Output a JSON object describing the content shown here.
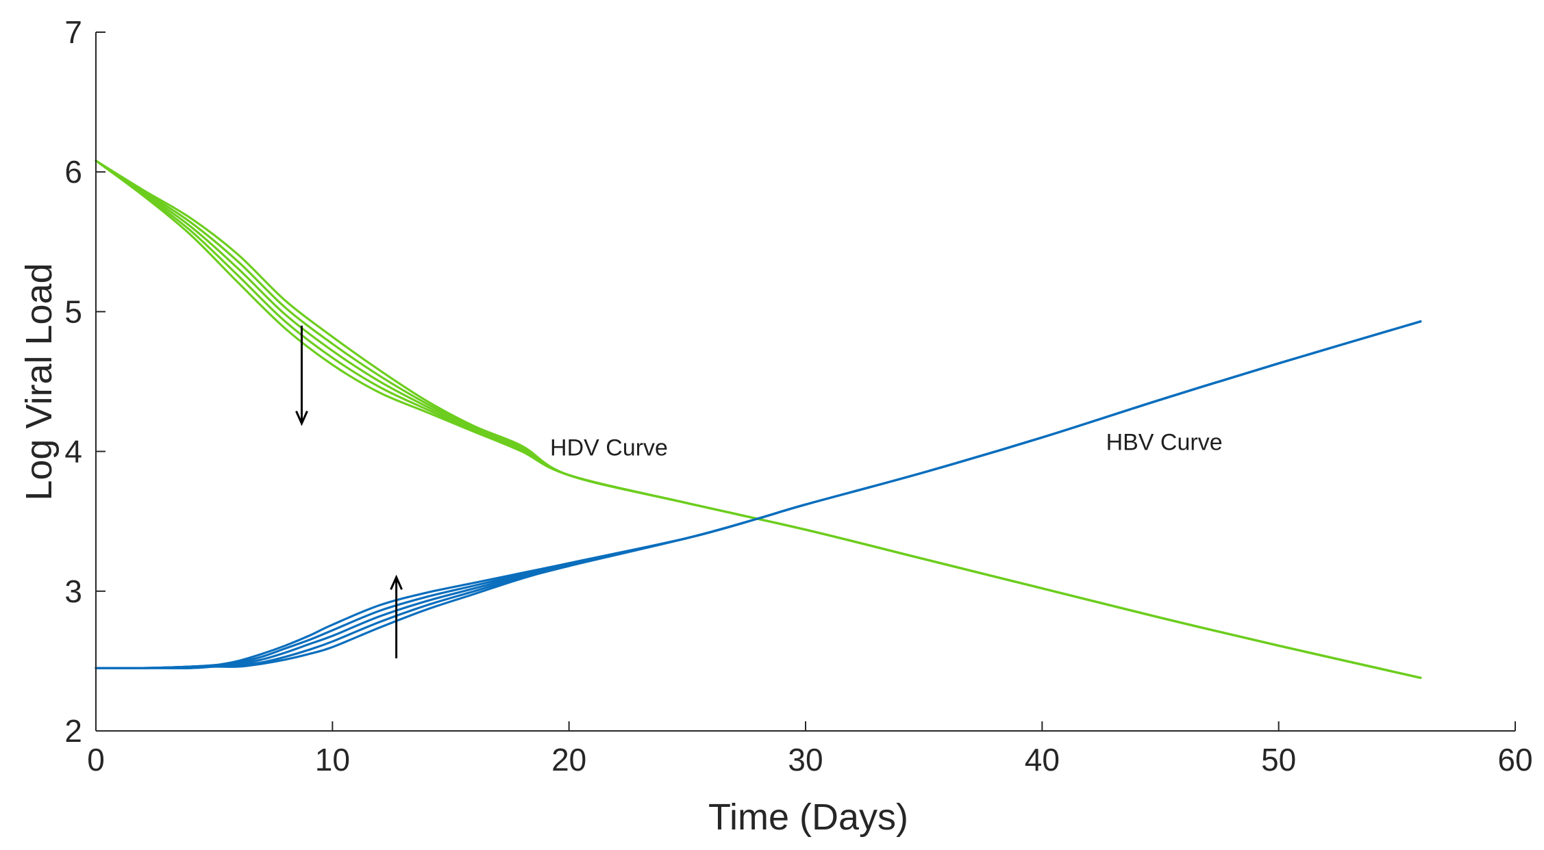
{
  "chart_data": {
    "type": "line",
    "title": "",
    "xlabel": "Time (Days)",
    "ylabel": "Log Viral Load",
    "xlim": [
      0,
      60
    ],
    "ylim": [
      2,
      7
    ],
    "xticks": [
      0,
      10,
      20,
      30,
      40,
      50,
      60
    ],
    "yticks": [
      2,
      3,
      4,
      5,
      6,
      7
    ],
    "grid": false,
    "colors": {
      "hdv": "#6ccd1e",
      "hbv": "#0a6ebd",
      "axis": "#262626",
      "arrow": "#000000"
    },
    "series": [
      {
        "name": "HDV",
        "family": "hdv",
        "x": [
          0,
          2,
          4,
          6,
          8,
          10,
          12,
          14,
          16,
          18,
          20,
          25,
          30,
          35,
          40,
          45,
          50,
          56
        ],
        "values": [
          6.08,
          5.83,
          5.55,
          5.21,
          4.88,
          4.62,
          4.42,
          4.28,
          4.14,
          4.0,
          3.83,
          3.63,
          3.44,
          3.23,
          3.02,
          2.81,
          2.61,
          2.38
        ]
      },
      {
        "name": "HDV",
        "family": "hdv",
        "x": [
          0,
          2,
          4,
          6,
          8,
          10,
          12,
          14,
          16,
          18,
          20,
          25,
          30,
          35,
          40,
          45,
          50,
          56
        ],
        "values": [
          6.08,
          5.84,
          5.58,
          5.26,
          4.93,
          4.67,
          4.46,
          4.3,
          4.15,
          4.01,
          3.83,
          3.63,
          3.44,
          3.23,
          3.02,
          2.81,
          2.61,
          2.38
        ]
      },
      {
        "name": "HDV",
        "family": "hdv",
        "x": [
          0,
          2,
          4,
          6,
          8,
          10,
          12,
          14,
          16,
          18,
          20,
          25,
          30,
          35,
          40,
          45,
          50,
          56
        ],
        "values": [
          6.08,
          5.85,
          5.61,
          5.31,
          4.98,
          4.72,
          4.5,
          4.32,
          4.16,
          4.02,
          3.83,
          3.63,
          3.44,
          3.23,
          3.02,
          2.81,
          2.61,
          2.38
        ]
      },
      {
        "name": "HDV",
        "family": "hdv",
        "x": [
          0,
          2,
          4,
          6,
          8,
          10,
          12,
          14,
          16,
          18,
          20,
          25,
          30,
          35,
          40,
          45,
          50,
          56
        ],
        "values": [
          6.08,
          5.86,
          5.64,
          5.36,
          5.03,
          4.77,
          4.54,
          4.34,
          4.17,
          4.03,
          3.83,
          3.63,
          3.44,
          3.23,
          3.02,
          2.81,
          2.61,
          2.38
        ]
      },
      {
        "name": "HDV",
        "family": "hdv",
        "x": [
          0,
          2,
          4,
          6,
          8,
          10,
          12,
          14,
          16,
          18,
          20,
          25,
          30,
          35,
          40,
          45,
          50,
          56
        ],
        "values": [
          6.08,
          5.87,
          5.67,
          5.41,
          5.08,
          4.82,
          4.58,
          4.36,
          4.18,
          4.04,
          3.83,
          3.63,
          3.44,
          3.23,
          3.02,
          2.81,
          2.61,
          2.38
        ]
      },
      {
        "name": "HBV",
        "family": "hbv",
        "x": [
          0,
          2,
          4,
          5,
          6,
          7,
          8,
          9,
          10,
          12,
          14,
          16,
          18,
          20,
          25,
          28,
          30,
          35,
          40,
          45,
          50,
          56
        ],
        "values": [
          2.45,
          2.45,
          2.46,
          2.47,
          2.5,
          2.55,
          2.61,
          2.68,
          2.76,
          2.9,
          2.99,
          3.06,
          3.13,
          3.2,
          3.38,
          3.52,
          3.62,
          3.85,
          4.1,
          4.37,
          4.63,
          4.93
        ]
      },
      {
        "name": "HBV",
        "family": "hbv",
        "x": [
          0,
          2,
          4,
          5,
          6,
          7,
          8,
          9,
          10,
          12,
          14,
          16,
          18,
          20,
          25,
          28,
          30,
          35,
          40,
          45,
          50,
          56
        ],
        "values": [
          2.45,
          2.45,
          2.46,
          2.47,
          2.49,
          2.53,
          2.59,
          2.65,
          2.72,
          2.86,
          2.96,
          3.04,
          3.12,
          3.2,
          3.38,
          3.52,
          3.62,
          3.85,
          4.1,
          4.37,
          4.63,
          4.93
        ]
      },
      {
        "name": "HBV",
        "family": "hbv",
        "x": [
          0,
          2,
          4,
          5,
          6,
          7,
          8,
          9,
          10,
          12,
          14,
          16,
          18,
          20,
          25,
          28,
          30,
          35,
          40,
          45,
          50,
          56
        ],
        "values": [
          2.45,
          2.45,
          2.46,
          2.47,
          2.48,
          2.51,
          2.56,
          2.62,
          2.68,
          2.82,
          2.93,
          3.02,
          3.11,
          3.19,
          3.38,
          3.52,
          3.62,
          3.85,
          4.1,
          4.37,
          4.63,
          4.93
        ]
      },
      {
        "name": "HBV",
        "family": "hbv",
        "x": [
          0,
          2,
          4,
          5,
          6,
          7,
          8,
          9,
          10,
          12,
          14,
          16,
          18,
          20,
          25,
          28,
          30,
          35,
          40,
          45,
          50,
          56
        ],
        "values": [
          2.45,
          2.45,
          2.45,
          2.46,
          2.47,
          2.49,
          2.53,
          2.58,
          2.64,
          2.78,
          2.9,
          3.0,
          3.1,
          3.19,
          3.38,
          3.52,
          3.62,
          3.85,
          4.1,
          4.37,
          4.63,
          4.93
        ]
      },
      {
        "name": "HBV",
        "family": "hbv",
        "x": [
          0,
          2,
          4,
          5,
          6,
          7,
          8,
          9,
          10,
          12,
          14,
          16,
          18,
          20,
          25,
          28,
          30,
          35,
          40,
          45,
          50,
          56
        ],
        "values": [
          2.45,
          2.45,
          2.45,
          2.46,
          2.46,
          2.48,
          2.51,
          2.55,
          2.6,
          2.74,
          2.87,
          2.98,
          3.09,
          3.18,
          3.38,
          3.52,
          3.62,
          3.85,
          4.1,
          4.37,
          4.63,
          4.93
        ]
      }
    ],
    "annotations": [
      {
        "id": "hdv-label",
        "text": "HDV Curve",
        "x": 19.2,
        "y": 4.03
      },
      {
        "id": "hbv-label",
        "text": "HBV Curve",
        "x": 42.7,
        "y": 4.07
      }
    ],
    "arrows": [
      {
        "id": "hdv-trend-arrow",
        "direction": "down",
        "x": 8.7,
        "y_from": 4.9,
        "y_to": 4.2
      },
      {
        "id": "hbv-trend-arrow",
        "direction": "up",
        "x": 12.7,
        "y_from": 2.52,
        "y_to": 3.1
      }
    ]
  }
}
